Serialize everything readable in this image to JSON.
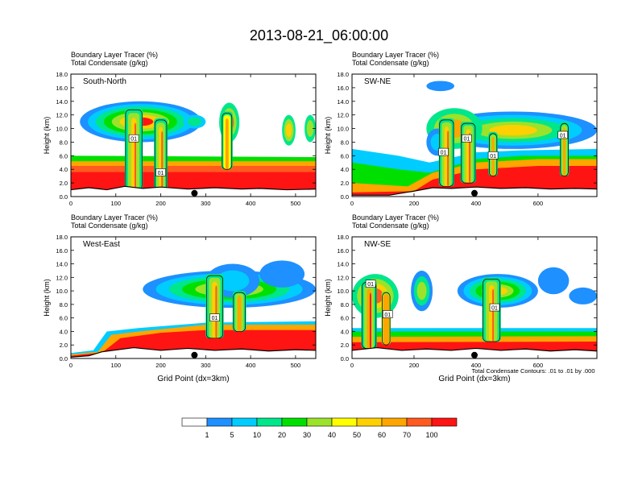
{
  "title": "2013-08-21_06:00:00",
  "colors": {
    "bins": [
      "#ffffff",
      "#1e90ff",
      "#00ccff",
      "#00e68a",
      "#00e000",
      "#9be22b",
      "#ffff00",
      "#ffd000",
      "#ffa500",
      "#ff5a1f",
      "#ff1414"
    ],
    "terrain": "#000000"
  },
  "chart_data": {
    "type": "heatmap",
    "colorbar": {
      "labels": [
        "1",
        "5",
        "10",
        "20",
        "30",
        "40",
        "50",
        "60",
        "70",
        "100"
      ],
      "colors": [
        "#ffffff",
        "#1e90ff",
        "#00ccff",
        "#00e68a",
        "#00e000",
        "#9be22b",
        "#ffff00",
        "#ffd000",
        "#ffa500",
        "#ff5a1f",
        "#ff1414"
      ]
    },
    "footnote": "Total Condensate Contours: .01 to .01 by .000",
    "panels": [
      {
        "name": "South-North",
        "subtitle1": "Boundary Layer Tracer   (%)",
        "subtitle2": "Total Condensate   (g/kg)",
        "xlim": [
          0,
          545
        ],
        "ylim": [
          0,
          18
        ],
        "xticks": [
          "0",
          "100",
          "200",
          "300",
          "400",
          "500"
        ],
        "yticks": [
          "0.0",
          "2.0",
          "4.0",
          "6.0",
          "8.0",
          "10.0",
          "12.0",
          "14.0",
          "16.0",
          "18.0"
        ],
        "ylabel": "Height (km)",
        "xlabel": "",
        "marker_x": 275,
        "contour_labels": [
          {
            "text": "01",
            "x": 140,
            "y": 8.5
          },
          {
            "text": "01",
            "x": 200,
            "y": 3.5
          }
        ],
        "terrain_profile": [
          [
            0,
            1.0
          ],
          [
            40,
            1.3
          ],
          [
            80,
            1.0
          ],
          [
            120,
            1.5
          ],
          [
            160,
            1.2
          ],
          [
            200,
            1.4
          ],
          [
            260,
            1.1
          ],
          [
            320,
            1.3
          ],
          [
            380,
            1.1
          ],
          [
            420,
            1.2
          ],
          [
            480,
            1.0
          ],
          [
            545,
            1.1
          ]
        ],
        "bands": [
          {
            "top": [
              [
                0,
                6.0
              ],
              [
                545,
                5.8
              ]
            ],
            "bin": 4
          },
          {
            "top": [
              [
                0,
                5.2
              ],
              [
                545,
                5.2
              ]
            ],
            "bin": 8
          },
          {
            "top": [
              [
                0,
                4.5
              ],
              [
                545,
                4.5
              ]
            ],
            "bin": 9
          },
          {
            "top": [
              [
                0,
                3.6
              ],
              [
                545,
                3.6
              ]
            ],
            "bin": 10
          }
        ],
        "anvils": [
          {
            "x0": 20,
            "x1": 290,
            "base": 8.0,
            "top": 14.0,
            "bins": [
              1,
              2,
              3,
              4,
              5,
              7,
              10
            ]
          },
          {
            "x0": 250,
            "x1": 300,
            "base": 10.0,
            "top": 12.0,
            "bins": [
              2,
              3
            ]
          },
          {
            "x0": 330,
            "x1": 375,
            "base": 8.0,
            "top": 13.8,
            "bins": [
              3,
              5,
              9
            ]
          },
          {
            "x0": 470,
            "x1": 500,
            "base": 7.5,
            "top": 12.0,
            "bins": [
              3,
              5,
              7
            ]
          },
          {
            "x0": 520,
            "x1": 545,
            "base": 8.0,
            "top": 12.0,
            "bins": [
              3,
              5
            ]
          }
        ],
        "towers": [
          {
            "x0": 120,
            "x1": 160,
            "base": 1.0,
            "top": 13.0,
            "bins": [
              3,
              5,
              7,
              9
            ]
          },
          {
            "x0": 185,
            "x1": 215,
            "base": 1.0,
            "top": 11.5,
            "bins": [
              3,
              5,
              7,
              9
            ]
          },
          {
            "x0": 335,
            "x1": 360,
            "base": 4.0,
            "top": 12.5,
            "bins": [
              3,
              6,
              8
            ]
          }
        ]
      },
      {
        "name": "SW-NE",
        "subtitle1": "Boundary Layer Tracer   (%)",
        "subtitle2": "Total Condensate   (g/kg)",
        "xlim": [
          0,
          790
        ],
        "ylim": [
          0,
          18
        ],
        "xticks": [
          "0",
          "200",
          "400",
          "600"
        ],
        "yticks": [
          "0.0",
          "2.0",
          "4.0",
          "6.0",
          "8.0",
          "10.0",
          "12.0",
          "14.0",
          "16.0",
          "18.0"
        ],
        "ylabel": "Height (km)",
        "xlabel": "",
        "marker_x": 395,
        "contour_labels": [
          {
            "text": "01",
            "x": 295,
            "y": 6.5
          },
          {
            "text": "01",
            "x": 370,
            "y": 8.5
          },
          {
            "text": "01",
            "x": 455,
            "y": 6.0
          },
          {
            "text": "01",
            "x": 680,
            "y": 9.0
          }
        ],
        "terrain_profile": [
          [
            0,
            0.2
          ],
          [
            120,
            0.2
          ],
          [
            200,
            0.8
          ],
          [
            260,
            1.3
          ],
          [
            320,
            1.2
          ],
          [
            400,
            1.4
          ],
          [
            480,
            1.2
          ],
          [
            560,
            1.3
          ],
          [
            640,
            1.1
          ],
          [
            720,
            1.2
          ],
          [
            790,
            1.1
          ]
        ],
        "bands": [
          {
            "top": [
              [
                0,
                7.0
              ],
              [
                150,
                6.0
              ],
              [
                250,
                5.0
              ],
              [
                400,
                6.5
              ],
              [
                550,
                6.8
              ],
              [
                790,
                7.0
              ]
            ],
            "bin": 2
          },
          {
            "top": [
              [
                0,
                5.0
              ],
              [
                150,
                4.0
              ],
              [
                250,
                3.5
              ],
              [
                400,
                5.5
              ],
              [
                550,
                6.0
              ],
              [
                790,
                6.0
              ]
            ],
            "bin": 4
          },
          {
            "top": [
              [
                0,
                2.0
              ],
              [
                180,
                1.5
              ],
              [
                260,
                3.5
              ],
              [
                400,
                5.0
              ],
              [
                600,
                5.5
              ],
              [
                790,
                5.5
              ]
            ],
            "bin": 8
          },
          {
            "top": [
              [
                0,
                0.6
              ],
              [
                200,
                0.8
              ],
              [
                260,
                2.5
              ],
              [
                400,
                4.0
              ],
              [
                600,
                4.5
              ],
              [
                790,
                4.5
              ]
            ],
            "bin": 10
          }
        ],
        "anvils": [
          {
            "x0": 250,
            "x1": 790,
            "base": 7.0,
            "top": 12.5,
            "bins": [
              1,
              2,
              3,
              5,
              7
            ]
          },
          {
            "x0": 240,
            "x1": 420,
            "base": 7.0,
            "top": 13.0,
            "bins": [
              3,
              5,
              8
            ]
          },
          {
            "x0": 240,
            "x1": 310,
            "base": 6.0,
            "top": 10.0,
            "bins": [
              1,
              2
            ]
          },
          {
            "x0": 240,
            "x1": 330,
            "base": 15.5,
            "top": 17.0,
            "bins": [
              1
            ]
          }
        ],
        "towers": [
          {
            "x0": 280,
            "x1": 330,
            "base": 1.5,
            "top": 11.5,
            "bins": [
              3,
              5,
              7,
              9
            ]
          },
          {
            "x0": 350,
            "x1": 400,
            "base": 2.0,
            "top": 11.0,
            "bins": [
              3,
              5,
              7,
              9
            ]
          },
          {
            "x0": 440,
            "x1": 470,
            "base": 3.0,
            "top": 9.5,
            "bins": [
              3,
              5,
              8
            ]
          },
          {
            "x0": 670,
            "x1": 700,
            "base": 3.0,
            "top": 11.0,
            "bins": [
              3,
              5,
              8
            ]
          }
        ]
      },
      {
        "name": "West-East",
        "subtitle1": "Boundary Layer Tracer   (%)",
        "subtitle2": "Total Condensate   (g/kg)",
        "xlim": [
          0,
          545
        ],
        "ylim": [
          0,
          18
        ],
        "xticks": [
          "0",
          "100",
          "200",
          "300",
          "400",
          "500"
        ],
        "yticks": [
          "0.0",
          "2.0",
          "4.0",
          "6.0",
          "8.0",
          "10.0",
          "12.0",
          "14.0",
          "16.0",
          "18.0"
        ],
        "ylabel": "Height (km)",
        "xlabel": "Grid Point (dx=3km)",
        "marker_x": 275,
        "contour_labels": [
          {
            "text": "01",
            "x": 320,
            "y": 6.0
          }
        ],
        "terrain_profile": [
          [
            0,
            0.2
          ],
          [
            40,
            0.4
          ],
          [
            70,
            1.0
          ],
          [
            140,
            1.6
          ],
          [
            200,
            1.2
          ],
          [
            260,
            1.5
          ],
          [
            320,
            1.2
          ],
          [
            380,
            1.4
          ],
          [
            440,
            1.1
          ],
          [
            500,
            1.3
          ],
          [
            545,
            1.2
          ]
        ],
        "bands": [
          {
            "top": [
              [
                0,
                0.8
              ],
              [
                50,
                1.2
              ],
              [
                80,
                4.0
              ],
              [
                150,
                4.5
              ],
              [
                300,
                5.3
              ],
              [
                545,
                5.5
              ]
            ],
            "bin": 2
          },
          {
            "top": [
              [
                0,
                0.6
              ],
              [
                60,
                1.0
              ],
              [
                90,
                3.5
              ],
              [
                150,
                4.0
              ],
              [
                300,
                5.0
              ],
              [
                545,
                5.0
              ]
            ],
            "bin": 8
          },
          {
            "top": [
              [
                0,
                0.4
              ],
              [
                70,
                0.9
              ],
              [
                110,
                3.0
              ],
              [
                200,
                3.8
              ],
              [
                300,
                4.2
              ],
              [
                545,
                4.2
              ]
            ],
            "bin": 10
          }
        ],
        "anvils": [
          {
            "x0": 160,
            "x1": 545,
            "base": 7.5,
            "top": 13.0,
            "bins": [
              1,
              2,
              3,
              4,
              5,
              6
            ]
          },
          {
            "x0": 300,
            "x1": 420,
            "base": 9.0,
            "top": 14.0,
            "bins": [
              1,
              2
            ]
          },
          {
            "x0": 420,
            "x1": 520,
            "base": 10.5,
            "top": 14.5,
            "bins": [
              1
            ]
          }
        ],
        "towers": [
          {
            "x0": 300,
            "x1": 340,
            "base": 3.0,
            "top": 12.5,
            "bins": [
              3,
              5,
              7,
              9
            ]
          },
          {
            "x0": 360,
            "x1": 390,
            "base": 4.0,
            "top": 10.0,
            "bins": [
              3,
              5,
              8
            ]
          }
        ]
      },
      {
        "name": "NW-SE",
        "subtitle1": "Boundary Layer Tracer   (%)",
        "subtitle2": "Total Condensate   (g/kg)",
        "xlim": [
          0,
          790
        ],
        "ylim": [
          0,
          18
        ],
        "xticks": [
          "0",
          "200",
          "400",
          "600"
        ],
        "yticks": [
          "0.0",
          "2.0",
          "4.0",
          "6.0",
          "8.0",
          "10.0",
          "12.0",
          "14.0",
          "16.0",
          "18.0"
        ],
        "ylabel": "Height (km)",
        "xlabel": "Grid Point (dx=3km)",
        "marker_x": 395,
        "contour_labels": [
          {
            "text": "01",
            "x": 60,
            "y": 11.0
          },
          {
            "text": "01",
            "x": 115,
            "y": 6.5
          },
          {
            "text": "01",
            "x": 460,
            "y": 7.5
          }
        ],
        "terrain_profile": [
          [
            0,
            1.2
          ],
          [
            80,
            1.6
          ],
          [
            160,
            1.2
          ],
          [
            240,
            1.4
          ],
          [
            320,
            1.2
          ],
          [
            400,
            1.5
          ],
          [
            480,
            1.2
          ],
          [
            560,
            1.4
          ],
          [
            640,
            1.1
          ],
          [
            720,
            1.3
          ],
          [
            790,
            1.1
          ]
        ],
        "bands": [
          {
            "top": [
              [
                0,
                4.5
              ],
              [
                790,
                4.5
              ]
            ],
            "bin": 2
          },
          {
            "top": [
              [
                0,
                4.0
              ],
              [
                790,
                4.0
              ]
            ],
            "bin": 4
          },
          {
            "top": [
              [
                0,
                3.2
              ],
              [
                790,
                3.3
              ]
            ],
            "bin": 8
          },
          {
            "top": [
              [
                0,
                2.4
              ],
              [
                790,
                2.5
              ]
            ],
            "bin": 10
          }
        ],
        "anvils": [
          {
            "x0": 0,
            "x1": 150,
            "base": 6.0,
            "top": 12.5,
            "bins": [
              3,
              5,
              7,
              9
            ]
          },
          {
            "x0": 190,
            "x1": 260,
            "base": 7.0,
            "top": 13.0,
            "bins": [
              1,
              3,
              5
            ]
          },
          {
            "x0": 340,
            "x1": 600,
            "base": 7.5,
            "top": 12.5,
            "bins": [
              1,
              2,
              3,
              4,
              5,
              7
            ]
          },
          {
            "x0": 600,
            "x1": 700,
            "base": 9.5,
            "top": 13.5,
            "bins": [
              1
            ]
          },
          {
            "x0": 700,
            "x1": 790,
            "base": 8.0,
            "top": 10.5,
            "bins": [
              1
            ]
          }
        ],
        "towers": [
          {
            "x0": 30,
            "x1": 80,
            "base": 1.5,
            "top": 11.5,
            "bins": [
              3,
              5,
              8,
              10
            ]
          },
          {
            "x0": 95,
            "x1": 125,
            "base": 2.0,
            "top": 10.0,
            "bins": [
              5,
              8
            ]
          },
          {
            "x0": 420,
            "x1": 480,
            "base": 2.5,
            "top": 12.0,
            "bins": [
              3,
              5,
              7,
              9
            ]
          }
        ]
      }
    ]
  }
}
